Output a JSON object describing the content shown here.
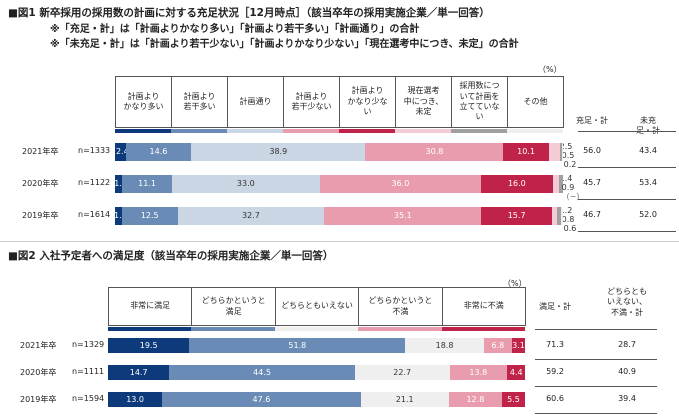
{
  "chart_data": [
    {
      "type": "bar",
      "orientation": "horizontal",
      "stacked": true,
      "title": "■図1 新卒採用の採用数の計画に対する充足状況［12月時点］（該当卒年の採用実施企業／単一回答）",
      "notes": [
        "※「充足・計」は「計画よりかなり多い」「計画より若干多い」「計画通り」の合計",
        "※「未充足・計」は「計画より若干少ない」「計画よりかなり少ない」「現在選考中につき、未定」の合計"
      ],
      "unit": "（%）",
      "categories": [
        "2021年卒",
        "2020年卒",
        "2019年卒"
      ],
      "n": [
        "n=1333",
        "n=1122",
        "n=1614"
      ],
      "series": [
        {
          "name": "計画より\nかなり多い",
          "color": "#0d3a7a",
          "values": [
            2.4,
            1.6,
            1.5
          ]
        },
        {
          "name": "計画より\n若干多い",
          "color": "#6a8bb5",
          "values": [
            14.6,
            11.1,
            12.5
          ]
        },
        {
          "name": "計画通り",
          "color": "#cbd6e4",
          "values": [
            38.9,
            33.0,
            32.7
          ]
        },
        {
          "name": "計画より\n若干少ない",
          "color": "#e99cad",
          "values": [
            30.8,
            36.0,
            35.1
          ]
        },
        {
          "name": "計画より\nかなり少な\nい",
          "color": "#c0234a",
          "values": [
            10.1,
            16.0,
            15.7
          ]
        },
        {
          "name": "現在選考\n中につき、\n未定",
          "color": "#f5ccd6",
          "values": [
            2.5,
            1.4,
            1.2
          ]
        },
        {
          "name": "採用数につ\nいて計画を\n立てていな\nい",
          "color": "#a0a0a0",
          "values": [
            0.5,
            0.9,
            0.8
          ]
        },
        {
          "name": "その他",
          "color": "#efefef",
          "values": [
            0.2,
            null,
            0.6
          ]
        }
      ],
      "dash_label": "(−)",
      "summary_headers": [
        "充足・計",
        "未充足・計"
      ],
      "summary": [
        [
          "56.0",
          "43.4"
        ],
        [
          "45.7",
          "53.4"
        ],
        [
          "46.7",
          "52.0"
        ]
      ],
      "xlim": [
        0,
        100
      ]
    },
    {
      "type": "bar",
      "orientation": "horizontal",
      "stacked": true,
      "title": "■図2 入社予定者への満足度（該当卒年の採用実施企業／単一回答）",
      "unit": "（%）",
      "categories": [
        "2021年卒",
        "2020年卒",
        "2019年卒"
      ],
      "n": [
        "n=1329",
        "n=1111",
        "n=1594"
      ],
      "series": [
        {
          "name": "非常に満足",
          "color": "#0d3a7a",
          "values": [
            19.5,
            14.7,
            13.0
          ]
        },
        {
          "name": "どちらかというと\n満足",
          "color": "#6a8bb5",
          "values": [
            51.8,
            44.5,
            47.6
          ]
        },
        {
          "name": "どちらともいえない",
          "color": "#efefef",
          "values": [
            18.8,
            22.7,
            21.1
          ]
        },
        {
          "name": "どちらかというと\n不満",
          "color": "#e99cad",
          "values": [
            6.8,
            13.8,
            12.8
          ]
        },
        {
          "name": "非常に不満",
          "color": "#c0234a",
          "values": [
            3.1,
            4.4,
            5.5
          ]
        }
      ],
      "summary_headers": [
        "満足・計",
        "どちらとも\nいえない、\n不満・計"
      ],
      "summary": [
        [
          "71.3",
          "28.7"
        ],
        [
          "59.2",
          "40.9"
        ],
        [
          "60.6",
          "39.4"
        ]
      ],
      "xlim": [
        0,
        100
      ]
    }
  ]
}
